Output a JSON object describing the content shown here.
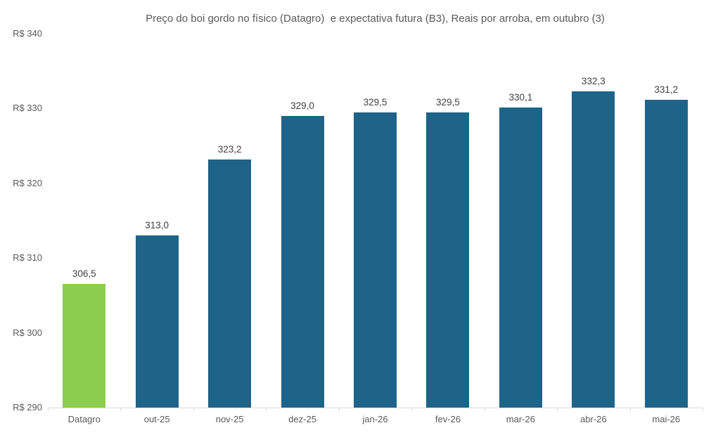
{
  "title": "Preço do boi gordo no físico (Datagro)  e expectativa futura (B3), Reais por arroba, em outubro (3)",
  "chart_data": {
    "type": "bar",
    "title": "Preço do boi gordo no físico (Datagro)  e expectativa futura (B3), Reais por arroba, em outubro (3)",
    "categories": [
      "Datagro",
      "out-25",
      "nov-25",
      "dez-25",
      "jan-26",
      "fev-26",
      "mar-26",
      "abr-26",
      "mai-26"
    ],
    "values": [
      306.5,
      313.0,
      323.2,
      329.0,
      329.5,
      329.5,
      330.1,
      332.3,
      331.2
    ],
    "value_labels": [
      "306,5",
      "313,0",
      "323,2",
      "329,0",
      "329,5",
      "329,5",
      "330,1",
      "332,3",
      "331,2"
    ],
    "xlabel": "",
    "ylabel": "",
    "ylim": [
      290,
      340
    ],
    "ytick_step": 10,
    "ytick_labels": [
      "R$ 290",
      "R$ 300",
      "R$ 310",
      "R$ 320",
      "R$ 330",
      "R$ 340"
    ],
    "grid": false,
    "legend_position": "none",
    "series_colors": {
      "highlight_first_bar": "#8BCE4F",
      "default_bar": "#1E6388"
    },
    "highlight_index": 0,
    "axis_color": "#d9d9d9",
    "label_color": "#404040",
    "tick_label_color": "#595959"
  }
}
